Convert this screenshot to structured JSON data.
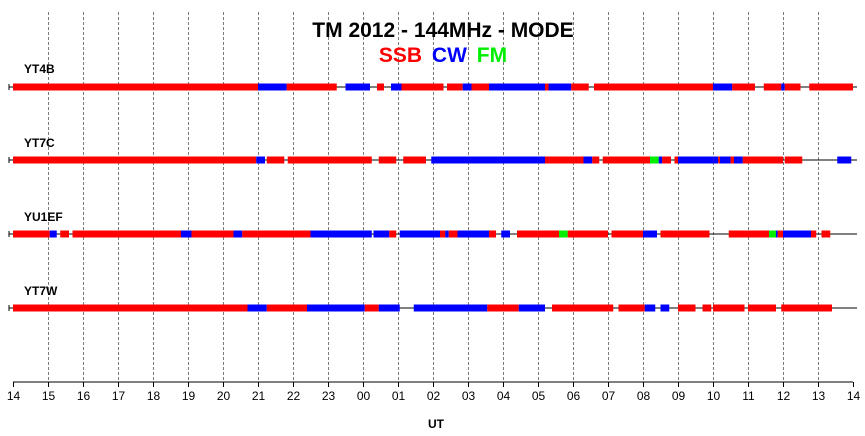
{
  "chart_data": {
    "type": "timeline",
    "title": "TM 2012 - 144MHz - MODE",
    "xlabel": "UT",
    "x_ticks": [
      "14",
      "15",
      "16",
      "17",
      "18",
      "19",
      "20",
      "21",
      "22",
      "23",
      "00",
      "01",
      "02",
      "03",
      "04",
      "05",
      "06",
      "07",
      "08",
      "09",
      "10",
      "11",
      "12",
      "13",
      "14"
    ],
    "xlim": [
      0,
      24
    ],
    "grid": true,
    "legend": {
      "placement": "top-center",
      "items": [
        {
          "label": "SSB",
          "color": "#ff0000"
        },
        {
          "label": "CW",
          "color": "#0000ff"
        },
        {
          "label": "FM",
          "color": "#00ee00"
        }
      ]
    },
    "units_note": "segment start/end in hours elapsed since 14:00 UT",
    "stations": [
      {
        "name": "YT4B",
        "segments": [
          {
            "mode": "SSB",
            "start": 0.0,
            "end": 7.0
          },
          {
            "mode": "CW",
            "start": 7.0,
            "end": 7.82
          },
          {
            "mode": "SSB",
            "start": 7.82,
            "end": 9.25
          },
          {
            "mode": "CW",
            "start": 9.5,
            "end": 10.2
          },
          {
            "mode": "SSB",
            "start": 10.4,
            "end": 10.6
          },
          {
            "mode": "CW",
            "start": 10.8,
            "end": 11.1
          },
          {
            "mode": "SSB",
            "start": 11.1,
            "end": 12.3
          },
          {
            "mode": "SSB",
            "start": 12.4,
            "end": 12.85
          },
          {
            "mode": "CW",
            "start": 12.85,
            "end": 13.1
          },
          {
            "mode": "SSB",
            "start": 13.1,
            "end": 13.6
          },
          {
            "mode": "CW",
            "start": 13.6,
            "end": 15.2
          },
          {
            "mode": "SSB",
            "start": 15.2,
            "end": 15.3
          },
          {
            "mode": "CW",
            "start": 15.3,
            "end": 15.95
          },
          {
            "mode": "SSB",
            "start": 15.95,
            "end": 16.45
          },
          {
            "mode": "SSB",
            "start": 16.6,
            "end": 20.0
          },
          {
            "mode": "CW",
            "start": 20.0,
            "end": 20.55
          },
          {
            "mode": "SSB",
            "start": 20.55,
            "end": 21.2
          },
          {
            "mode": "SSB",
            "start": 21.45,
            "end": 21.95
          },
          {
            "mode": "CW",
            "start": 21.95,
            "end": 22.05
          },
          {
            "mode": "SSB",
            "start": 22.05,
            "end": 22.5
          },
          {
            "mode": "SSB",
            "start": 22.75,
            "end": 24.0
          }
        ]
      },
      {
        "name": "YT7C",
        "segments": [
          {
            "mode": "SSB",
            "start": 0.0,
            "end": 6.95
          },
          {
            "mode": "CW",
            "start": 6.95,
            "end": 7.2
          },
          {
            "mode": "SSB",
            "start": 7.25,
            "end": 7.75
          },
          {
            "mode": "SSB",
            "start": 7.85,
            "end": 10.25
          },
          {
            "mode": "SSB",
            "start": 10.45,
            "end": 10.95
          },
          {
            "mode": "SSB",
            "start": 11.15,
            "end": 11.8
          },
          {
            "mode": "CW",
            "start": 11.95,
            "end": 15.2
          },
          {
            "mode": "SSB",
            "start": 15.2,
            "end": 16.3
          },
          {
            "mode": "CW",
            "start": 16.3,
            "end": 16.55
          },
          {
            "mode": "SSB",
            "start": 16.55,
            "end": 16.75
          },
          {
            "mode": "SSB",
            "start": 16.85,
            "end": 18.2
          },
          {
            "mode": "FM",
            "start": 18.2,
            "end": 18.45
          },
          {
            "mode": "CW",
            "start": 18.45,
            "end": 18.55
          },
          {
            "mode": "SSB",
            "start": 18.55,
            "end": 18.8
          },
          {
            "mode": "SSB",
            "start": 18.9,
            "end": 19.0
          },
          {
            "mode": "CW",
            "start": 19.0,
            "end": 20.15
          },
          {
            "mode": "SSB",
            "start": 20.15,
            "end": 20.2
          },
          {
            "mode": "CW",
            "start": 20.2,
            "end": 20.5
          },
          {
            "mode": "SSB",
            "start": 20.5,
            "end": 20.6
          },
          {
            "mode": "CW",
            "start": 20.6,
            "end": 20.85
          },
          {
            "mode": "SSB",
            "start": 20.85,
            "end": 22.0
          },
          {
            "mode": "SSB",
            "start": 22.05,
            "end": 22.55
          },
          {
            "mode": "CW",
            "start": 23.55,
            "end": 23.95
          }
        ]
      },
      {
        "name": "YU1EF",
        "segments": [
          {
            "mode": "SSB",
            "start": 0.0,
            "end": 1.05
          },
          {
            "mode": "CW",
            "start": 1.05,
            "end": 1.25
          },
          {
            "mode": "SSB",
            "start": 1.35,
            "end": 1.6
          },
          {
            "mode": "SSB",
            "start": 1.7,
            "end": 4.8
          },
          {
            "mode": "CW",
            "start": 4.8,
            "end": 5.1
          },
          {
            "mode": "SSB",
            "start": 5.1,
            "end": 6.3
          },
          {
            "mode": "CW",
            "start": 6.3,
            "end": 6.55
          },
          {
            "mode": "SSB",
            "start": 6.55,
            "end": 8.5
          },
          {
            "mode": "CW",
            "start": 8.5,
            "end": 10.25
          },
          {
            "mode": "CW",
            "start": 10.3,
            "end": 10.75
          },
          {
            "mode": "SSB",
            "start": 10.75,
            "end": 10.95
          },
          {
            "mode": "CW",
            "start": 11.05,
            "end": 12.2
          },
          {
            "mode": "SSB",
            "start": 12.2,
            "end": 12.35
          },
          {
            "mode": "CW",
            "start": 12.35,
            "end": 12.45
          },
          {
            "mode": "SSB",
            "start": 12.45,
            "end": 12.7
          },
          {
            "mode": "CW",
            "start": 12.7,
            "end": 13.6
          },
          {
            "mode": "SSB",
            "start": 13.6,
            "end": 13.8
          },
          {
            "mode": "CW",
            "start": 13.95,
            "end": 14.2
          },
          {
            "mode": "SSB",
            "start": 14.4,
            "end": 15.6
          },
          {
            "mode": "FM",
            "start": 15.6,
            "end": 15.85
          },
          {
            "mode": "SSB",
            "start": 15.85,
            "end": 17.0
          },
          {
            "mode": "SSB",
            "start": 17.1,
            "end": 18.0
          },
          {
            "mode": "CW",
            "start": 18.0,
            "end": 18.4
          },
          {
            "mode": "SSB",
            "start": 18.5,
            "end": 19.9
          },
          {
            "mode": "SSB",
            "start": 20.45,
            "end": 21.6
          },
          {
            "mode": "FM",
            "start": 21.6,
            "end": 21.8
          },
          {
            "mode": "CW",
            "start": 21.8,
            "end": 21.85
          },
          {
            "mode": "SSB",
            "start": 21.85,
            "end": 22.0
          },
          {
            "mode": "CW",
            "start": 22.0,
            "end": 22.8
          },
          {
            "mode": "SSB",
            "start": 22.8,
            "end": 22.95
          },
          {
            "mode": "SSB",
            "start": 23.1,
            "end": 23.35
          }
        ]
      },
      {
        "name": "YT7W",
        "segments": [
          {
            "mode": "SSB",
            "start": 0.0,
            "end": 6.7
          },
          {
            "mode": "CW",
            "start": 6.7,
            "end": 7.25
          },
          {
            "mode": "SSB",
            "start": 7.25,
            "end": 8.4
          },
          {
            "mode": "CW",
            "start": 8.4,
            "end": 10.05
          },
          {
            "mode": "SSB",
            "start": 10.05,
            "end": 10.45
          },
          {
            "mode": "CW",
            "start": 10.45,
            "end": 11.05
          },
          {
            "mode": "CW",
            "start": 11.45,
            "end": 13.55
          },
          {
            "mode": "SSB",
            "start": 13.55,
            "end": 14.45
          },
          {
            "mode": "CW",
            "start": 14.45,
            "end": 15.2
          },
          {
            "mode": "SSB",
            "start": 15.4,
            "end": 17.15
          },
          {
            "mode": "SSB",
            "start": 17.3,
            "end": 18.05
          },
          {
            "mode": "CW",
            "start": 18.05,
            "end": 18.35
          },
          {
            "mode": "CW",
            "start": 18.5,
            "end": 18.75
          },
          {
            "mode": "SSB",
            "start": 19.0,
            "end": 19.5
          },
          {
            "mode": "SSB",
            "start": 19.7,
            "end": 19.95
          },
          {
            "mode": "SSB",
            "start": 20.0,
            "end": 20.9
          },
          {
            "mode": "SSB",
            "start": 21.0,
            "end": 21.8
          },
          {
            "mode": "SSB",
            "start": 21.95,
            "end": 23.4
          }
        ]
      }
    ]
  }
}
